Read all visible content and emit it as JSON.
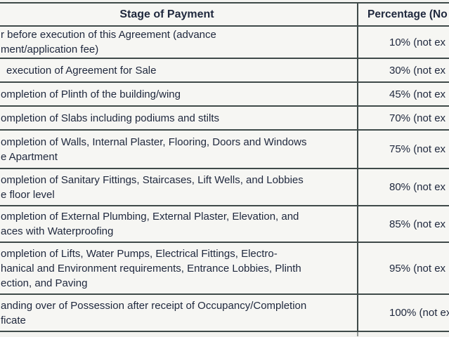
{
  "table": {
    "header": {
      "stage_label": "Stage of Payment",
      "percentage_label": "Percentage (No"
    },
    "rows": [
      {
        "stage_lines": [
          "r before execution of this Agreement (advance",
          "ment/application fee)"
        ],
        "percentage": "10% (not ex"
      },
      {
        "stage_lines": [
          "execution of Agreement for Sale"
        ],
        "percentage": "30% (not ex"
      },
      {
        "stage_lines": [
          "ompletion of Plinth of the building/wing"
        ],
        "percentage": "45% (not ex"
      },
      {
        "stage_lines": [
          "ompletion of Slabs including podiums and stilts"
        ],
        "percentage": "70% (not ex"
      },
      {
        "stage_lines": [
          "ompletion of Walls, Internal Plaster, Flooring, Doors and Windows",
          "e Apartment"
        ],
        "percentage": "75% (not ex"
      },
      {
        "stage_lines": [
          "ompletion of Sanitary Fittings, Staircases, Lift Wells, and Lobbies",
          "e floor level"
        ],
        "percentage": "80% (not ex"
      },
      {
        "stage_lines": [
          "ompletion of External Plumbing, External Plaster, Elevation, and",
          "aces with Waterproofing"
        ],
        "percentage": "85% (not ex"
      },
      {
        "stage_lines": [
          "ompletion of Lifts, Water Pumps, Electrical Fittings, Electro-",
          "hanical and Environment requirements, Entrance Lobbies, Plinth",
          "ection, and Paving"
        ],
        "percentage": "95% (not ex"
      },
      {
        "stage_lines": [
          "anding over of Possession after receipt of Occupancy/Completion",
          "ficate"
        ],
        "percentage": "100% (not ex"
      }
    ]
  },
  "colors": {
    "text": "#20293e",
    "border": "#3f4a49",
    "page_bg": "#f3f3f0",
    "cell_bg": "#f6f6f3"
  }
}
